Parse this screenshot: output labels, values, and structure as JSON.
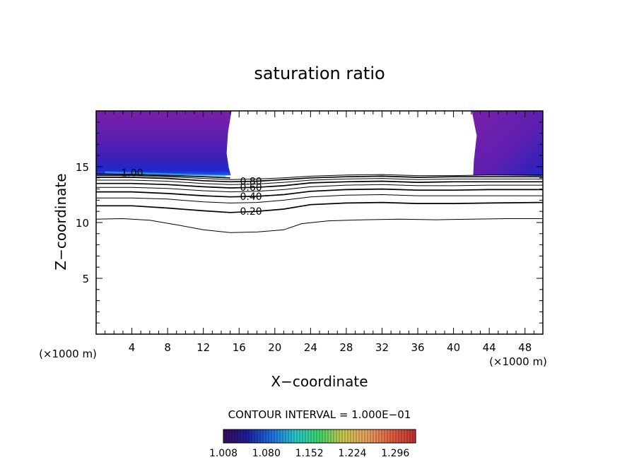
{
  "chart_data": {
    "type": "contour",
    "title": "saturation ratio",
    "xlabel": "X−coordinate",
    "ylabel": "Z−coordinate",
    "x_unit_left": "(×1000 m)",
    "x_unit_right": "(×1000 m)",
    "xlim": [
      0,
      50
    ],
    "ylim": [
      0,
      20
    ],
    "x_ticks": [
      4,
      8,
      12,
      16,
      20,
      24,
      28,
      32,
      36,
      40,
      44,
      48
    ],
    "y_ticks": [
      5,
      10,
      15
    ],
    "contour_interval_text": "CONTOUR INTERVAL = 1.000E−01",
    "colorbar": {
      "tick_labels": [
        "1.008",
        "1.080",
        "1.152",
        "1.224",
        "1.296"
      ],
      "min": 1.008,
      "max": 1.33,
      "colors": [
        "#3a0a5c",
        "#1c1f9a",
        "#1e6fe0",
        "#28c8c8",
        "#3fd66a",
        "#cfc84a",
        "#e8a060",
        "#e06040",
        "#c03030"
      ]
    },
    "contours": [
      {
        "level": 0.1,
        "label": "",
        "points": [
          [
            0,
            10.3
          ],
          [
            3,
            10.35
          ],
          [
            6,
            10.2
          ],
          [
            9,
            9.8
          ],
          [
            12,
            9.35
          ],
          [
            15,
            9.1
          ],
          [
            18,
            9.15
          ],
          [
            21,
            9.35
          ],
          [
            23,
            9.9
          ],
          [
            26,
            10.15
          ],
          [
            30,
            10.25
          ],
          [
            34,
            10.3
          ],
          [
            38,
            10.25
          ],
          [
            42,
            10.3
          ],
          [
            46,
            10.35
          ],
          [
            50,
            10.35
          ]
        ]
      },
      {
        "level": 0.2,
        "label": "0.20",
        "points": [
          [
            0,
            11.5
          ],
          [
            4,
            11.5
          ],
          [
            8,
            11.3
          ],
          [
            12,
            11.05
          ],
          [
            15,
            10.9
          ],
          [
            18,
            11.0
          ],
          [
            21,
            11.2
          ],
          [
            24,
            11.6
          ],
          [
            28,
            11.75
          ],
          [
            32,
            11.8
          ],
          [
            36,
            11.7
          ],
          [
            40,
            11.7
          ],
          [
            44,
            11.75
          ],
          [
            50,
            11.8
          ]
        ]
      },
      {
        "level": 0.3,
        "label": "",
        "points": [
          [
            0,
            12.2
          ],
          [
            4,
            12.2
          ],
          [
            8,
            12.1
          ],
          [
            12,
            11.85
          ],
          [
            15,
            11.75
          ],
          [
            18,
            11.8
          ],
          [
            21,
            12.0
          ],
          [
            24,
            12.3
          ],
          [
            28,
            12.45
          ],
          [
            32,
            12.5
          ],
          [
            36,
            12.4
          ],
          [
            40,
            12.4
          ],
          [
            44,
            12.4
          ],
          [
            50,
            12.4
          ]
        ]
      },
      {
        "level": 0.4,
        "label": "0.40",
        "points": [
          [
            0,
            12.75
          ],
          [
            4,
            12.75
          ],
          [
            8,
            12.6
          ],
          [
            12,
            12.4
          ],
          [
            15,
            12.3
          ],
          [
            18,
            12.35
          ],
          [
            21,
            12.5
          ],
          [
            24,
            12.8
          ],
          [
            28,
            12.95
          ],
          [
            32,
            13.0
          ],
          [
            36,
            12.9
          ],
          [
            40,
            12.9
          ],
          [
            44,
            12.95
          ],
          [
            50,
            12.95
          ]
        ]
      },
      {
        "level": 0.5,
        "label": "",
        "points": [
          [
            0,
            13.15
          ],
          [
            4,
            13.15
          ],
          [
            8,
            13.05
          ],
          [
            12,
            12.85
          ],
          [
            15,
            12.75
          ],
          [
            18,
            12.8
          ],
          [
            21,
            12.95
          ],
          [
            24,
            13.2
          ],
          [
            28,
            13.35
          ],
          [
            32,
            13.4
          ],
          [
            36,
            13.3
          ],
          [
            40,
            13.3
          ],
          [
            44,
            13.35
          ],
          [
            50,
            13.35
          ]
        ]
      },
      {
        "level": 0.6,
        "label": "0.60",
        "points": [
          [
            0,
            13.5
          ],
          [
            4,
            13.5
          ],
          [
            8,
            13.4
          ],
          [
            12,
            13.2
          ],
          [
            15,
            13.1
          ],
          [
            18,
            13.15
          ],
          [
            21,
            13.3
          ],
          [
            24,
            13.55
          ],
          [
            28,
            13.65
          ],
          [
            32,
            13.7
          ],
          [
            36,
            13.6
          ],
          [
            40,
            13.65
          ],
          [
            44,
            13.65
          ],
          [
            50,
            13.65
          ]
        ]
      },
      {
        "level": 0.7,
        "label": "",
        "points": [
          [
            0,
            13.8
          ],
          [
            4,
            13.8
          ],
          [
            8,
            13.7
          ],
          [
            12,
            13.5
          ],
          [
            15,
            13.4
          ],
          [
            18,
            13.45
          ],
          [
            21,
            13.6
          ],
          [
            24,
            13.8
          ],
          [
            28,
            13.9
          ],
          [
            32,
            13.95
          ],
          [
            36,
            13.85
          ],
          [
            40,
            13.9
          ],
          [
            44,
            13.9
          ],
          [
            50,
            13.9
          ]
        ]
      },
      {
        "level": 0.8,
        "label": "0.80",
        "points": [
          [
            0,
            14.05
          ],
          [
            4,
            14.05
          ],
          [
            8,
            13.95
          ],
          [
            12,
            13.75
          ],
          [
            15,
            13.65
          ],
          [
            18,
            13.7
          ],
          [
            21,
            13.85
          ],
          [
            24,
            14.0
          ],
          [
            28,
            14.1
          ],
          [
            32,
            14.15
          ],
          [
            36,
            14.05
          ],
          [
            40,
            14.1
          ],
          [
            44,
            14.1
          ],
          [
            50,
            14.1
          ]
        ]
      },
      {
        "level": 0.9,
        "label": "",
        "points": [
          [
            0,
            14.2
          ],
          [
            4,
            14.2
          ],
          [
            8,
            14.1
          ],
          [
            12,
            13.95
          ],
          [
            15,
            13.85
          ],
          [
            18,
            13.9
          ],
          [
            21,
            14.0
          ],
          [
            24,
            14.15
          ],
          [
            28,
            14.25
          ],
          [
            32,
            14.3
          ],
          [
            36,
            14.2
          ],
          [
            40,
            14.2
          ],
          [
            44,
            14.25
          ],
          [
            50,
            14.25
          ]
        ]
      },
      {
        "level": 1.0,
        "label": "1.00",
        "points": [
          [
            0,
            14.35
          ],
          [
            4,
            14.3
          ],
          [
            8,
            14.2
          ],
          [
            12,
            14.1
          ],
          [
            15,
            14.0
          ]
        ]
      }
    ],
    "filled_regions": [
      {
        "x_range": [
          0,
          15.0
        ],
        "z_bottom": 14.35,
        "z_top": 20
      },
      {
        "x_range": [
          42.2,
          50
        ],
        "z_bottom": 14.3,
        "z_top": 20
      }
    ],
    "grid": false
  }
}
